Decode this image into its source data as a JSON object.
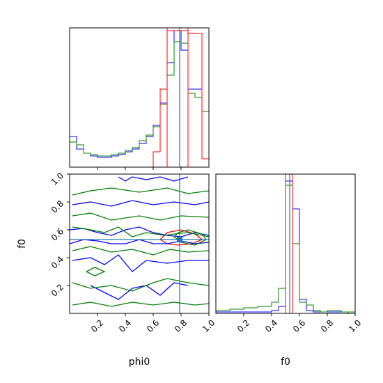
{
  "chart_data": [
    {
      "panel": "phi0-histogram",
      "type": "line",
      "x": [
        0.0,
        0.05,
        0.1,
        0.15,
        0.2,
        0.25,
        0.3,
        0.35,
        0.4,
        0.45,
        0.5,
        0.55,
        0.6,
        0.65,
        0.7,
        0.75,
        0.8,
        0.85,
        0.9,
        0.95
      ],
      "xlim": [
        0,
        1
      ],
      "series": [
        {
          "color": "#0000ff",
          "values": [
            0.22,
            0.13,
            0.1,
            0.08,
            0.07,
            0.07,
            0.08,
            0.09,
            0.11,
            0.13,
            0.17,
            0.22,
            0.3,
            0.46,
            0.75,
            0.98,
            0.84,
            0.56,
            0.56,
            0.4
          ]
        },
        {
          "color": "#008000",
          "values": [
            0.18,
            0.16,
            0.1,
            0.09,
            0.08,
            0.08,
            0.09,
            0.1,
            0.12,
            0.14,
            0.19,
            0.23,
            0.29,
            0.45,
            0.66,
            0.9,
            0.89,
            0.53,
            0.5,
            0.4
          ]
        },
        {
          "color": "#ff0000",
          "values": [
            0.0,
            0.0,
            0.0,
            0.0,
            0.0,
            0.0,
            0.0,
            0.0,
            0.0,
            0.0,
            0.0,
            0.0,
            0.11,
            0.56,
            0.98,
            0.98,
            0.98,
            0.96,
            0.96,
            0.06
          ]
        }
      ],
      "truth_line": {
        "x": 0.79,
        "color": "#1f77b4"
      },
      "red_bounds": [
        0.7,
        0.85
      ]
    },
    {
      "panel": "f0-vs-phi0-contour",
      "type": "scatter",
      "xlabel": "phi0",
      "ylabel": "f0",
      "xlim": [
        0,
        1
      ],
      "ylim": [
        0,
        1
      ],
      "xticks": [
        "0.2",
        "0.4",
        "0.6",
        "0.8",
        "1.0"
      ],
      "yticks": [
        "0.2",
        "0.4",
        "0.6",
        "0.8",
        "1.0"
      ],
      "truth_point": {
        "x": 0.79,
        "y": 0.53,
        "color": "#1f77b4"
      },
      "contours": [
        {
          "color": "#ff0000",
          "points": [
            [
              0.65,
              0.53
            ],
            [
              0.7,
              0.58
            ],
            [
              0.8,
              0.6
            ],
            [
              0.9,
              0.57
            ],
            [
              0.95,
              0.53
            ],
            [
              0.88,
              0.5
            ],
            [
              0.78,
              0.49
            ],
            [
              0.7,
              0.5
            ],
            [
              0.65,
              0.53
            ]
          ]
        },
        {
          "color": "#0000ff",
          "points": [
            [
              0.0,
              0.6
            ],
            [
              0.1,
              0.61
            ],
            [
              0.2,
              0.58
            ],
            [
              0.3,
              0.56
            ],
            [
              0.4,
              0.6
            ],
            [
              0.5,
              0.62
            ],
            [
              0.6,
              0.58
            ],
            [
              0.7,
              0.56
            ],
            [
              0.8,
              0.55
            ],
            [
              0.9,
              0.58
            ],
            [
              1.0,
              0.56
            ]
          ]
        },
        {
          "color": "#0000ff",
          "points": [
            [
              0.0,
              0.5
            ],
            [
              0.1,
              0.53
            ],
            [
              0.2,
              0.52
            ],
            [
              0.3,
              0.5
            ],
            [
              0.4,
              0.5
            ],
            [
              0.5,
              0.53
            ],
            [
              0.6,
              0.5
            ],
            [
              0.7,
              0.5
            ],
            [
              0.8,
              0.52
            ],
            [
              0.9,
              0.5
            ],
            [
              1.0,
              0.51
            ]
          ]
        },
        {
          "color": "#0000ff",
          "points": [
            [
              0.02,
              0.78
            ],
            [
              0.15,
              0.8
            ],
            [
              0.3,
              0.77
            ],
            [
              0.45,
              0.81
            ],
            [
              0.6,
              0.78
            ],
            [
              0.75,
              0.8
            ],
            [
              0.9,
              0.78
            ],
            [
              1.0,
              0.8
            ]
          ]
        },
        {
          "color": "#0000ff",
          "points": [
            [
              0.02,
              0.38
            ],
            [
              0.15,
              0.4
            ],
            [
              0.25,
              0.35
            ],
            [
              0.35,
              0.42
            ],
            [
              0.45,
              0.3
            ],
            [
              0.55,
              0.38
            ],
            [
              0.7,
              0.36
            ],
            [
              0.85,
              0.38
            ],
            [
              1.0,
              0.38
            ]
          ]
        },
        {
          "color": "#0000ff",
          "points": [
            [
              0.15,
              0.2
            ],
            [
              0.25,
              0.15
            ],
            [
              0.35,
              0.1
            ],
            [
              0.45,
              0.18
            ],
            [
              0.55,
              0.2
            ],
            [
              0.65,
              0.13
            ],
            [
              0.75,
              0.22
            ],
            [
              0.85,
              0.2
            ]
          ]
        },
        {
          "color": "#0000ff",
          "points": [
            [
              0.35,
              0.98
            ],
            [
              0.4,
              0.95
            ],
            [
              0.45,
              0.98
            ],
            [
              0.55,
              0.96
            ],
            [
              0.65,
              0.98
            ],
            [
              0.75,
              0.95
            ],
            [
              0.85,
              0.98
            ]
          ]
        },
        {
          "color": "#008000",
          "points": [
            [
              0.02,
              0.85
            ],
            [
              0.15,
              0.88
            ],
            [
              0.3,
              0.9
            ],
            [
              0.5,
              0.87
            ],
            [
              0.7,
              0.9
            ],
            [
              0.85,
              0.86
            ],
            [
              1.0,
              0.88
            ]
          ]
        },
        {
          "color": "#008000",
          "points": [
            [
              0.02,
              0.7
            ],
            [
              0.15,
              0.72
            ],
            [
              0.3,
              0.67
            ],
            [
              0.5,
              0.7
            ],
            [
              0.65,
              0.67
            ],
            [
              0.8,
              0.7
            ],
            [
              1.0,
              0.69
            ]
          ]
        },
        {
          "color": "#008000",
          "points": [
            [
              0.02,
              0.62
            ],
            [
              0.15,
              0.6
            ],
            [
              0.25,
              0.58
            ],
            [
              0.35,
              0.62
            ],
            [
              0.45,
              0.55
            ],
            [
              0.55,
              0.58
            ],
            [
              0.68,
              0.56
            ],
            [
              0.75,
              0.57
            ],
            [
              0.85,
              0.58
            ],
            [
              0.95,
              0.56
            ],
            [
              1.0,
              0.55
            ]
          ]
        },
        {
          "color": "#008000",
          "points": [
            [
              0.02,
              0.45
            ],
            [
              0.15,
              0.48
            ],
            [
              0.3,
              0.44
            ],
            [
              0.45,
              0.46
            ],
            [
              0.6,
              0.42
            ],
            [
              0.72,
              0.46
            ],
            [
              0.85,
              0.44
            ],
            [
              1.0,
              0.45
            ]
          ]
        },
        {
          "color": "#008000",
          "points": [
            [
              0.02,
              0.22
            ],
            [
              0.15,
              0.18
            ],
            [
              0.3,
              0.2
            ],
            [
              0.45,
              0.16
            ],
            [
              0.6,
              0.22
            ],
            [
              0.7,
              0.25
            ],
            [
              0.85,
              0.22
            ],
            [
              1.0,
              0.2
            ]
          ]
        },
        {
          "color": "#008000",
          "points": [
            [
              0.02,
              0.06
            ],
            [
              0.15,
              0.08
            ],
            [
              0.3,
              0.05
            ],
            [
              0.45,
              0.08
            ],
            [
              0.6,
              0.06
            ],
            [
              0.75,
              0.08
            ],
            [
              0.9,
              0.06
            ],
            [
              1.0,
              0.07
            ]
          ]
        },
        {
          "color": "#008000",
          "points": [
            [
              0.12,
              0.3
            ],
            [
              0.18,
              0.33
            ],
            [
              0.25,
              0.3
            ],
            [
              0.18,
              0.27
            ],
            [
              0.12,
              0.3
            ]
          ]
        },
        {
          "color": "#008000",
          "points": [
            [
              0.78,
              0.58
            ],
            [
              0.85,
              0.6
            ],
            [
              0.95,
              0.57
            ],
            [
              0.98,
              0.53
            ],
            [
              0.9,
              0.49
            ],
            [
              0.8,
              0.51
            ],
            [
              0.75,
              0.55
            ],
            [
              0.78,
              0.58
            ]
          ]
        }
      ]
    },
    {
      "panel": "f0-histogram",
      "type": "line",
      "xlabel": "f0",
      "x": [
        0.0,
        0.05,
        0.1,
        0.15,
        0.2,
        0.25,
        0.3,
        0.35,
        0.4,
        0.45,
        0.5,
        0.55,
        0.6,
        0.65,
        0.7,
        0.75,
        0.8,
        0.85,
        0.9,
        0.95
      ],
      "xlim": [
        0,
        1
      ],
      "xticks": [
        "0.2",
        "0.4",
        "0.6",
        "0.8",
        "1.0"
      ],
      "series": [
        {
          "color": "#0000ff",
          "values": [
            0.01,
            0.01,
            0.01,
            0.01,
            0.01,
            0.01,
            0.01,
            0.01,
            0.02,
            0.05,
            0.95,
            0.75,
            0.1,
            0.02,
            0.01,
            0.01,
            0.01,
            0.01,
            0.01,
            0.0
          ]
        },
        {
          "color": "#008000",
          "values": [
            0.02,
            0.02,
            0.03,
            0.03,
            0.04,
            0.04,
            0.05,
            0.05,
            0.08,
            0.18,
            0.92,
            0.5,
            0.08,
            0.06,
            0.02,
            0.01,
            0.02,
            0.02,
            0.01,
            0.01
          ]
        }
      ],
      "truth_line": {
        "x": 0.53,
        "color": "#1f77b4"
      },
      "red_bounds": [
        0.5,
        0.55
      ]
    }
  ]
}
